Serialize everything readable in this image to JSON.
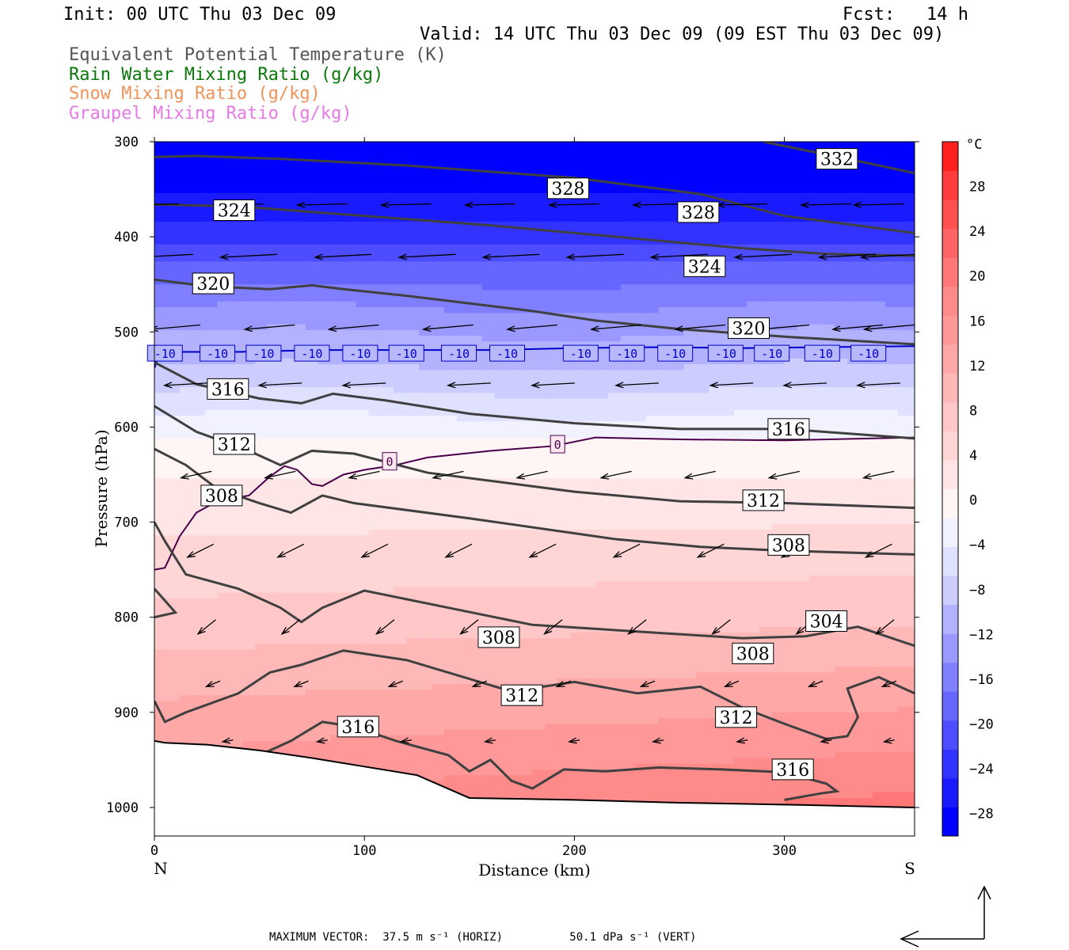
{
  "header": {
    "init": "Init: 00 UTC Thu 03 Dec 09",
    "fcst": "Fcst:   14 h",
    "valid": "Valid: 14 UTC Thu 03 Dec 09 (09 EST Thu 03 Dec 09)",
    "legend": [
      {
        "text": "Equivalent Potential Temperature (K)",
        "color": "#555555"
      },
      {
        "text": "Rain Water Mixing Ratio (g/kg)",
        "color": "#0a7a0a"
      },
      {
        "text": "Snow Mixing Ratio (g/kg)",
        "color": "#f0935a"
      },
      {
        "text": "Graupel Mixing Ratio (g/kg)",
        "color": "#e87ae8"
      }
    ]
  },
  "footer": {
    "max_vector": "MAXIMUM VECTOR:  37.5 m s⁻¹ (HORIZ)          50.1 dPa s⁻¹ (VERT)"
  },
  "chart_data": {
    "type": "cross-section",
    "xlabel": "Distance (km)",
    "ylabel": "Pressure (hPa)",
    "xlim": [
      0,
      362
    ],
    "ylim": [
      1030,
      300
    ],
    "x_ticks": [
      0,
      100,
      200,
      300
    ],
    "y_ticks": [
      300,
      400,
      500,
      600,
      700,
      800,
      900,
      1000
    ],
    "x_end_labels": {
      "left": "N",
      "right": "S"
    },
    "colorbar": {
      "unit": "°C",
      "tick_values": [
        28,
        24,
        20,
        16,
        12,
        8,
        4,
        0,
        -4,
        -8,
        -12,
        -16,
        -20,
        -24,
        -28
      ],
      "colors": [
        "#0000ff",
        "#1a1aff",
        "#3333ff",
        "#4d4dff",
        "#6666ff",
        "#7f7fff",
        "#9999ff",
        "#b2b2ff",
        "#ccccff",
        "#e0e0ff",
        "#f2f2ff",
        "#fff5f5",
        "#ffe6e6",
        "#ffd6d6",
        "#ffc7c7",
        "#ffb8b8",
        "#ffa8a8",
        "#ff9999",
        "#ff8a8a",
        "#ff7777",
        "#ff6464",
        "#ff5050",
        "#ff3c3c",
        "#ff2020"
      ]
    },
    "temperature_field": {
      "description_levels_hPa_to_C": [
        [
          300,
          -30
        ],
        [
          350,
          -28
        ],
        [
          400,
          -23
        ],
        [
          450,
          -17
        ],
        [
          500,
          -12
        ],
        [
          530,
          -10
        ],
        [
          560,
          -7
        ],
        [
          600,
          -3
        ],
        [
          630,
          0
        ],
        [
          700,
          3
        ],
        [
          800,
          7
        ],
        [
          900,
          12
        ],
        [
          1000,
          17
        ]
      ]
    },
    "isotherm_labels": [
      {
        "value": "-10",
        "color": "#0000cc",
        "points": [
          [
            5,
            24
          ],
          [
            30,
            22
          ],
          [
            52,
            22
          ],
          [
            75,
            22
          ],
          [
            98,
            22
          ],
          [
            120,
            22
          ],
          [
            145,
            22
          ],
          [
            168,
            22
          ],
          [
            203,
            21
          ],
          [
            225,
            21
          ],
          [
            248,
            21
          ],
          [
            272,
            21
          ],
          [
            294,
            21
          ],
          [
            318,
            21
          ],
          [
            340,
            21
          ]
        ]
      },
      {
        "value": "0",
        "color": "#4a004a",
        "points": [
          [
            112,
            636
          ],
          [
            192,
            618
          ]
        ]
      }
    ],
    "theta_e_labels": [
      {
        "value": "332",
        "x": 325,
        "p": 318
      },
      {
        "value": "328",
        "x": 197,
        "p": 349
      },
      {
        "value": "328",
        "x": 259,
        "p": 374
      },
      {
        "value": "324",
        "x": 38,
        "p": 372
      },
      {
        "value": "324",
        "x": 262,
        "p": 431
      },
      {
        "value": "320",
        "x": 28,
        "p": 449
      },
      {
        "value": "320",
        "x": 283,
        "p": 496
      },
      {
        "value": "316",
        "x": 35,
        "p": 560
      },
      {
        "value": "316",
        "x": 302,
        "p": 602
      },
      {
        "value": "312",
        "x": 38,
        "p": 618
      },
      {
        "value": "312",
        "x": 290,
        "p": 677
      },
      {
        "value": "308",
        "x": 32,
        "p": 672
      },
      {
        "value": "308",
        "x": 302,
        "p": 724
      },
      {
        "value": "308",
        "x": 164,
        "p": 821
      },
      {
        "value": "308",
        "x": 285,
        "p": 838
      },
      {
        "value": "304",
        "x": 320,
        "p": 804
      },
      {
        "value": "312",
        "x": 175,
        "p": 882
      },
      {
        "value": "312",
        "x": 277,
        "p": 905
      },
      {
        "value": "316",
        "x": 97,
        "p": 915
      },
      {
        "value": "316",
        "x": 304,
        "p": 960
      }
    ]
  },
  "colors": {
    "theta_e_line": "#404040",
    "isotherm_minus10": "#0000cc",
    "isotherm_zero": "#4a004a",
    "terrain": "#ffffff",
    "wind_arrow": "#000000"
  }
}
